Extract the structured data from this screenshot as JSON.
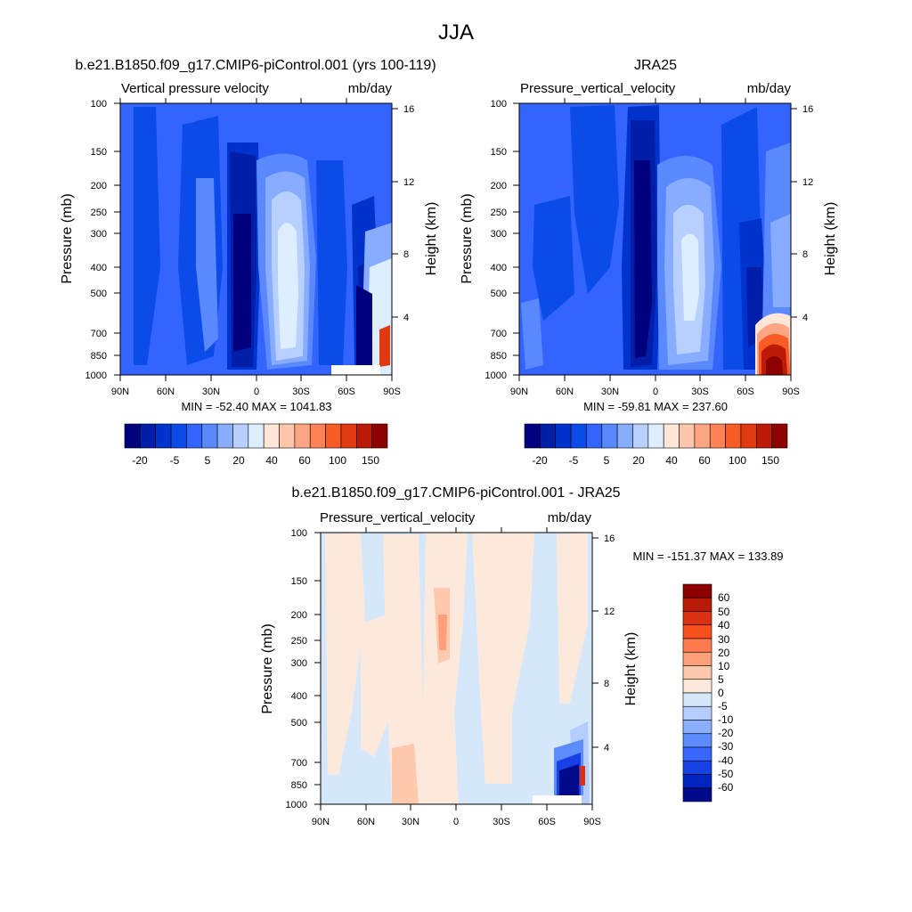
{
  "figure": {
    "title": "JJA"
  },
  "panels": [
    {
      "id": "model",
      "title": "b.e21.B1850.f09_g17.CMIP6-piControl.001 (yrs 100-119)",
      "variable": "Vertical pressure velocity",
      "units": "mb/day",
      "min_max": "MIN = -52.40  MAX = 1041.83"
    },
    {
      "id": "obs",
      "title": "JRA25",
      "variable": "Pressure_vertical_velocity",
      "units": "mb/day",
      "min_max": "MIN = -59.81  MAX = 237.60"
    },
    {
      "id": "diff",
      "title": "b.e21.B1850.f09_g17.CMIP6-piControl.001 - JRA25",
      "variable": "Pressure_vertical_velocity",
      "units": "mb/day",
      "min_max": "MIN = -151.37  MAX = 133.89"
    }
  ],
  "axes": {
    "ylabel_left": "Pressure (mb)",
    "ylabel_right": "Height (km)",
    "pressure_ticks": [
      "100",
      "150",
      "200",
      "250",
      "300",
      "400",
      "500",
      "700",
      "850",
      "1000"
    ],
    "height_ticks": [
      "4",
      "8",
      "12",
      "16"
    ],
    "lat_ticks": [
      "90N",
      "60N",
      "30N",
      "0",
      "30S",
      "60S",
      "90S"
    ]
  },
  "colorbars": {
    "main": {
      "labels": [
        "-20",
        "-5",
        "5",
        "20",
        "40",
        "60",
        "100",
        "150"
      ],
      "colors": [
        "#00007e",
        "#001ea8",
        "#0032cd",
        "#0b4bea",
        "#3364ff",
        "#5a88ff",
        "#88acff",
        "#b7d0ff",
        "#dceeff",
        "#ffe6d6",
        "#ffc6ac",
        "#ffa584",
        "#ff8357",
        "#f85c26",
        "#e23a10",
        "#bb1b06",
        "#8c0000"
      ]
    },
    "diff": {
      "labels": [
        "60",
        "50",
        "40",
        "30",
        "20",
        "10",
        "5",
        "0",
        "-5",
        "-10",
        "-20",
        "-30",
        "-40",
        "-50",
        "-60"
      ],
      "colors": [
        "#8c0000",
        "#b71a06",
        "#dd3211",
        "#f7501e",
        "#ff7a4c",
        "#ffa07a",
        "#ffc9ad",
        "#fde9dc",
        "#d5e7fb",
        "#b4cdfd",
        "#8aaffe",
        "#5c8cfe",
        "#3666fb",
        "#1541e6",
        "#0025c0",
        "#000a8a"
      ]
    }
  },
  "chart_data": [
    {
      "type": "heatmap",
      "title": "b.e21.B1850.f09_g17.CMIP6-piControl.001 (yrs 100-119)",
      "xlabel": "",
      "ylabel": "Pressure (mb)",
      "x_range": [
        "90N",
        "90S"
      ],
      "y_range_mb": [
        100,
        1000
      ],
      "y_scale": "log",
      "colorbar_levels": [
        -20,
        -5,
        5,
        20,
        40,
        60,
        100,
        150
      ],
      "min": -52.4,
      "max": 1041.83,
      "units": "mb/day"
    },
    {
      "type": "heatmap",
      "title": "JRA25",
      "ylabel": "Pressure (mb)",
      "x_range": [
        "90N",
        "90S"
      ],
      "y_range_mb": [
        100,
        1000
      ],
      "y_scale": "log",
      "colorbar_levels": [
        -20,
        -5,
        5,
        20,
        40,
        60,
        100,
        150
      ],
      "min": -59.81,
      "max": 237.6,
      "units": "mb/day"
    },
    {
      "type": "heatmap",
      "title": "b.e21.B1850.f09_g17.CMIP6-piControl.001 - JRA25",
      "ylabel": "Pressure (mb)",
      "x_range": [
        "90N",
        "90S"
      ],
      "y_range_mb": [
        100,
        1000
      ],
      "y_scale": "log",
      "colorbar_levels": [
        60,
        50,
        40,
        30,
        20,
        10,
        5,
        0,
        -5,
        -10,
        -20,
        -30,
        -40,
        -50,
        -60
      ],
      "min": -151.37,
      "max": 133.89,
      "units": "mb/day"
    }
  ]
}
